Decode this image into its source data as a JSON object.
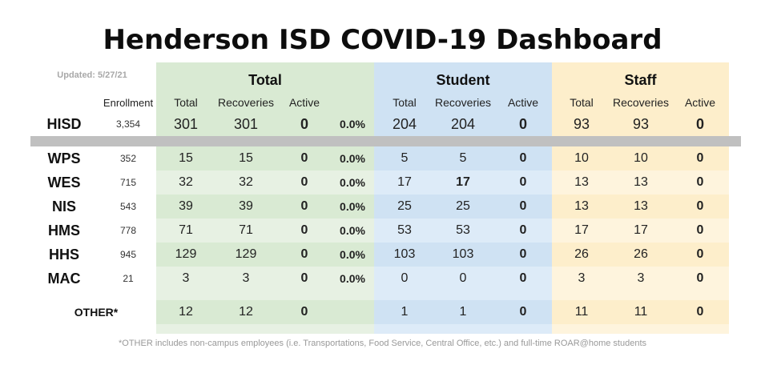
{
  "title": "Henderson ISD COVID-19 Dashboard",
  "updated": "Updated: 5/27/21",
  "groups": {
    "total": "Total",
    "student": "Student",
    "staff": "Staff"
  },
  "columns": {
    "enrollment": "Enrollment",
    "total": "Total",
    "recoveries": "Recoveries",
    "active": "Active"
  },
  "colors": {
    "total_header": "#d9ead3",
    "total_row_a": "#d9ead3",
    "total_row_b": "#e7f1e3",
    "student_header": "#cfe2f3",
    "student_row_a": "#cfe2f3",
    "student_row_b": "#ddebf8",
    "staff_header": "#fdeecb",
    "staff_row_a": "#fdeecb",
    "staff_row_b": "#fef4dd",
    "separator": "#c0c0c0"
  },
  "district": {
    "name": "HISD",
    "enrollment": "3,354",
    "total": "301",
    "total_recoveries": "301",
    "total_active": "0",
    "percent": "0.0%",
    "student": "204",
    "student_recoveries": "204",
    "student_active": "0",
    "staff": "93",
    "staff_recoveries": "93",
    "staff_active": "0"
  },
  "schools": [
    {
      "name": "WPS",
      "enrollment": "352",
      "total": "15",
      "total_recoveries": "15",
      "total_active": "0",
      "percent": "0.0%",
      "student": "5",
      "student_recoveries": "5",
      "student_active": "0",
      "staff": "10",
      "staff_recoveries": "10",
      "staff_active": "0"
    },
    {
      "name": "WES",
      "enrollment": "715",
      "total": "32",
      "total_recoveries": "32",
      "total_active": "0",
      "percent": "0.0%",
      "student": "17",
      "student_recoveries": "17",
      "student_active": "0",
      "staff": "13",
      "staff_recoveries": "13",
      "staff_active": "0"
    },
    {
      "name": "NIS",
      "enrollment": "543",
      "total": "39",
      "total_recoveries": "39",
      "total_active": "0",
      "percent": "0.0%",
      "student": "25",
      "student_recoveries": "25",
      "student_active": "0",
      "staff": "13",
      "staff_recoveries": "13",
      "staff_active": "0"
    },
    {
      "name": "HMS",
      "enrollment": "778",
      "total": "71",
      "total_recoveries": "71",
      "total_active": "0",
      "percent": "0.0%",
      "student": "53",
      "student_recoveries": "53",
      "student_active": "0",
      "staff": "17",
      "staff_recoveries": "17",
      "staff_active": "0"
    },
    {
      "name": "HHS",
      "enrollment": "945",
      "total": "129",
      "total_recoveries": "129",
      "total_active": "0",
      "percent": "0.0%",
      "student": "103",
      "student_recoveries": "103",
      "student_active": "0",
      "staff": "26",
      "staff_recoveries": "26",
      "staff_active": "0"
    },
    {
      "name": "MAC",
      "enrollment": "21",
      "total": "3",
      "total_recoveries": "3",
      "total_active": "0",
      "percent": "0.0%",
      "student": "0",
      "student_recoveries": "0",
      "student_active": "0",
      "staff": "3",
      "staff_recoveries": "3",
      "staff_active": "0"
    }
  ],
  "other": {
    "name": "OTHER*",
    "total": "12",
    "total_recoveries": "12",
    "total_active": "0",
    "student": "1",
    "student_recoveries": "1",
    "student_active": "0",
    "staff": "11",
    "staff_recoveries": "11",
    "staff_active": "0"
  },
  "footnote": "*OTHER includes non-campus employees (i.e. Transportations, Food Service, Central Office, etc.) and full-time ROAR@home students"
}
